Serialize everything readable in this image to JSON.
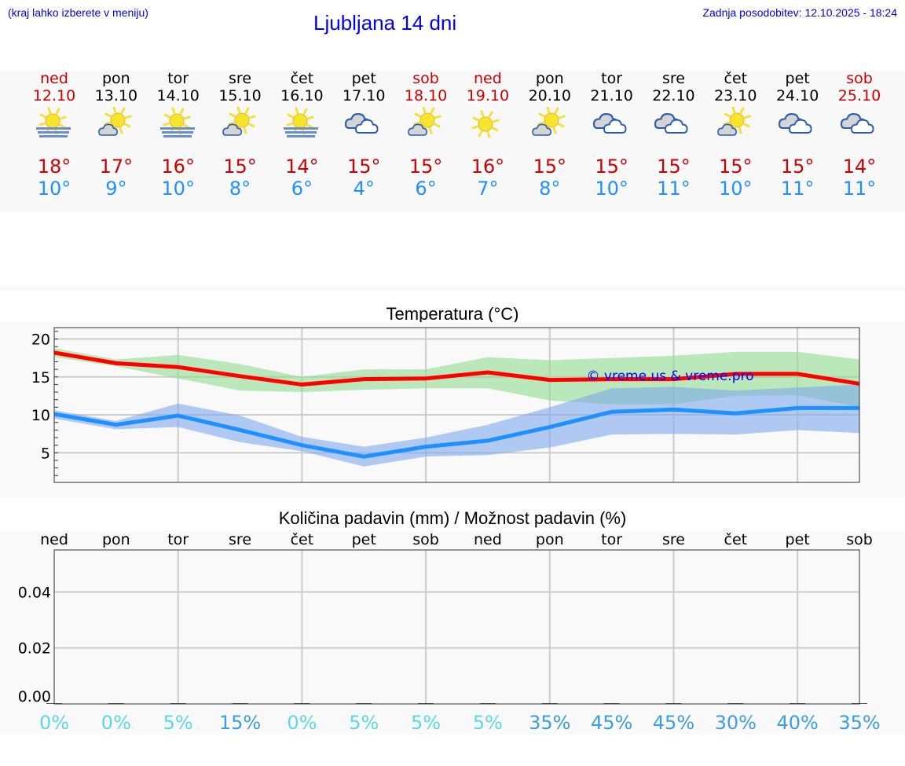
{
  "header": {
    "hint": "(kraj lahko izberete v meniju)",
    "title": "Ljubljana 14 dni",
    "updated": "Zadnja posodobitev: 12.10.2025 - 18:24"
  },
  "colors": {
    "weekend": "#cc0000",
    "weekday": "#000000",
    "max": "#cc0000",
    "min": "#1e90ff",
    "pct_low": "#5bd8e8",
    "pct_high": "#3a9ee0"
  },
  "days": [
    {
      "day": "ned",
      "date": "12.10",
      "weekend": true,
      "icon": "fog-sun",
      "max": "18°",
      "min": "10°"
    },
    {
      "day": "pon",
      "date": "13.10",
      "weekend": false,
      "icon": "partly-cloudy",
      "max": "17°",
      "min": "9°"
    },
    {
      "day": "tor",
      "date": "14.10",
      "weekend": false,
      "icon": "fog-sun",
      "max": "16°",
      "min": "10°"
    },
    {
      "day": "sre",
      "date": "15.10",
      "weekend": false,
      "icon": "partly-cloudy",
      "max": "15°",
      "min": "8°"
    },
    {
      "day": "čet",
      "date": "16.10",
      "weekend": false,
      "icon": "fog-sun",
      "max": "14°",
      "min": "6°"
    },
    {
      "day": "pet",
      "date": "17.10",
      "weekend": false,
      "icon": "cloudy",
      "max": "15°",
      "min": "4°"
    },
    {
      "day": "sob",
      "date": "18.10",
      "weekend": true,
      "icon": "partly-cloudy",
      "max": "15°",
      "min": "6°"
    },
    {
      "day": "ned",
      "date": "19.10",
      "weekend": true,
      "icon": "sunny",
      "max": "16°",
      "min": "7°"
    },
    {
      "day": "pon",
      "date": "20.10",
      "weekend": false,
      "icon": "partly-cloudy",
      "max": "15°",
      "min": "8°"
    },
    {
      "day": "tor",
      "date": "21.10",
      "weekend": false,
      "icon": "cloudy",
      "max": "15°",
      "min": "10°"
    },
    {
      "day": "sre",
      "date": "22.10",
      "weekend": false,
      "icon": "cloudy",
      "max": "15°",
      "min": "11°"
    },
    {
      "day": "čet",
      "date": "23.10",
      "weekend": false,
      "icon": "partly-cloudy",
      "max": "15°",
      "min": "10°"
    },
    {
      "day": "pet",
      "date": "24.10",
      "weekend": false,
      "icon": "cloudy",
      "max": "15°",
      "min": "11°"
    },
    {
      "day": "sob",
      "date": "25.10",
      "weekend": true,
      "icon": "cloudy",
      "max": "14°",
      "min": "11°"
    }
  ],
  "chart_data": [
    {
      "type": "line",
      "title": "Temperatura (°C)",
      "ylim": [
        1.1,
        21.5
      ],
      "yticks": [
        5,
        10,
        15,
        20
      ],
      "grid": true,
      "watermark": "© vreme.us & vreme.pro",
      "series": [
        {
          "values": [
            18.2,
            16.8,
            16.3,
            15.1,
            14.0,
            14.7,
            14.8,
            15.6,
            14.6,
            14.7,
            14.7,
            15.4,
            15.4,
            14.1
          ],
          "range_upper": [
            18.8,
            17.3,
            17.9,
            16.7,
            15.0,
            16.0,
            16.0,
            17.6,
            17.2,
            17.5,
            17.8,
            18.3,
            18.3,
            17.3
          ],
          "range_lower": [
            17.6,
            16.4,
            14.8,
            13.2,
            13.0,
            13.3,
            13.5,
            13.5,
            11.9,
            11.4,
            11.4,
            12.5,
            12.6,
            11.0
          ],
          "color": "#ff0000",
          "band_color": "#8fdc8f"
        },
        {
          "values": [
            10.1,
            8.7,
            9.9,
            8.0,
            6.0,
            4.5,
            5.8,
            6.6,
            8.4,
            10.4,
            10.7,
            10.2,
            10.9,
            10.9
          ],
          "range_upper": [
            10.6,
            9.2,
            11.5,
            9.9,
            7.1,
            5.8,
            7.0,
            8.7,
            11.0,
            13.5,
            13.7,
            13.2,
            13.6,
            14.0
          ],
          "range_lower": [
            9.5,
            8.1,
            8.4,
            6.4,
            5.2,
            3.2,
            4.5,
            4.7,
            5.7,
            7.4,
            7.5,
            7.4,
            8.0,
            7.6
          ],
          "color": "#1e90ff",
          "band_color": "#7fa8ec"
        }
      ]
    },
    {
      "type": "bar",
      "title": "Količina padavin (mm) / Možnost padavin (%)",
      "categories": [
        "ned",
        "pon",
        "tor",
        "sre",
        "čet",
        "pet",
        "sob",
        "ned",
        "pon",
        "tor",
        "sre",
        "čet",
        "pet",
        "sob"
      ],
      "values": [
        0,
        0,
        0,
        0,
        0,
        0,
        0,
        0,
        0,
        0,
        0,
        0,
        0,
        0
      ],
      "ylim": [
        0,
        0.055
      ],
      "yticks": [
        "0.00",
        "0.02",
        "0.04"
      ],
      "grid": true,
      "probability": [
        "0%",
        "0%",
        "5%",
        "15%",
        "0%",
        "5%",
        "5%",
        "5%",
        "35%",
        "45%",
        "45%",
        "30%",
        "40%",
        "35%"
      ]
    }
  ]
}
